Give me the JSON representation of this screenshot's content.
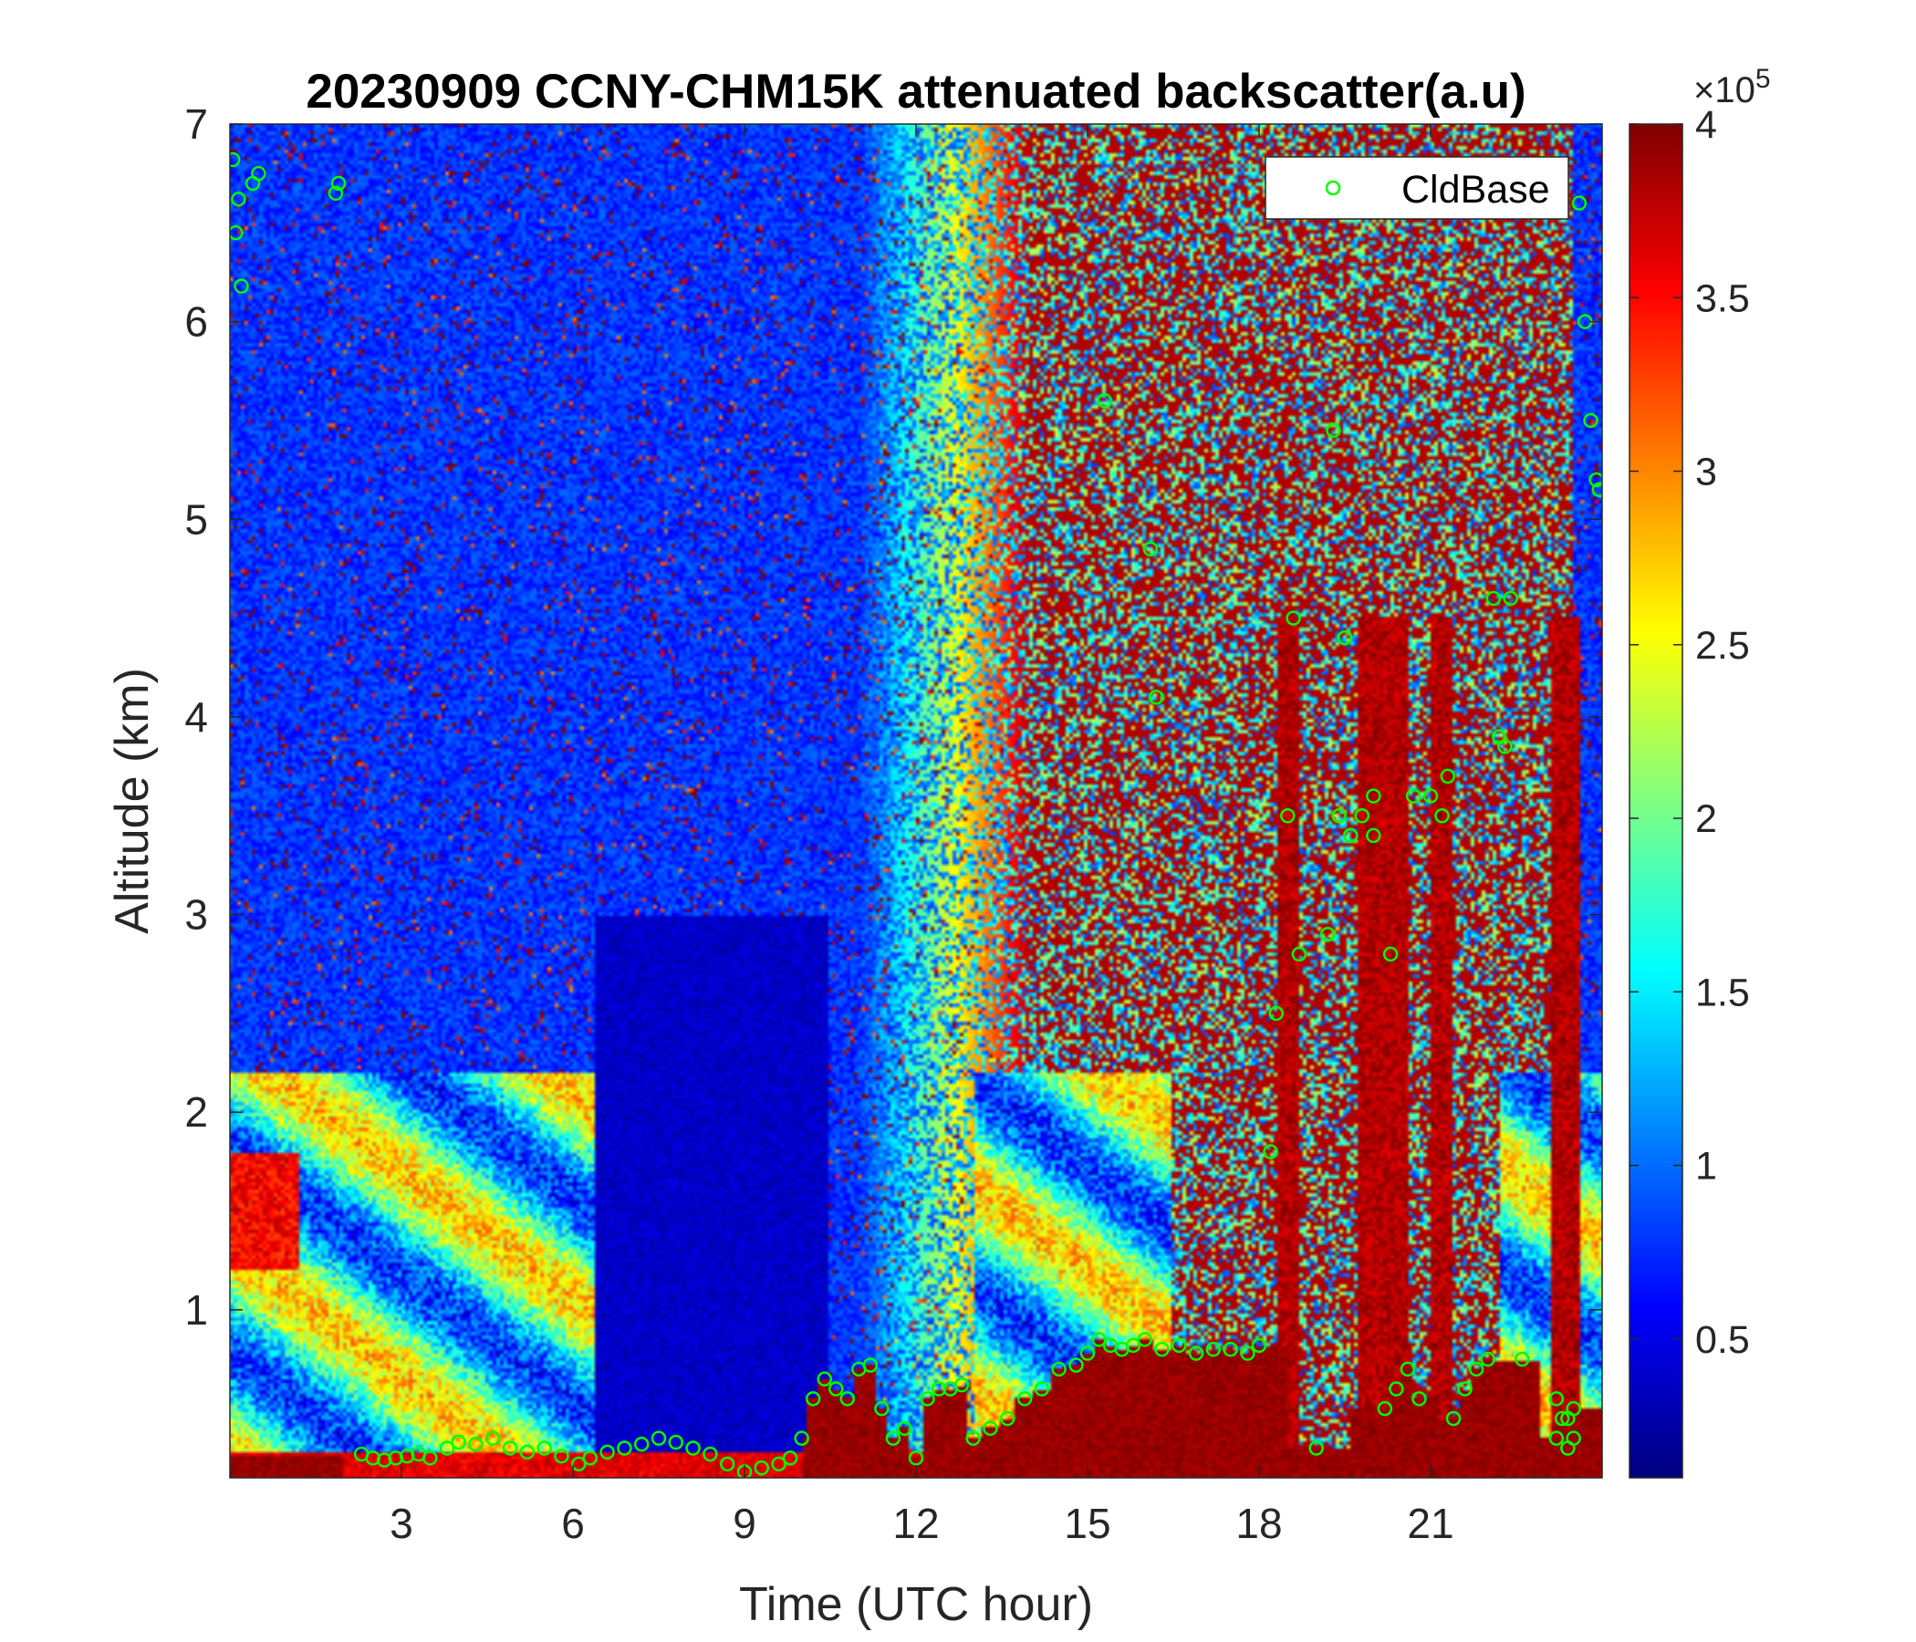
{
  "chart_data": {
    "type": "heatmap",
    "title": "20230909 CCNY-CHM15K attenuated backscatter(a.u)",
    "xlabel": "Time (UTC hour)",
    "ylabel": "Altitude (km)",
    "xlim": [
      0,
      24
    ],
    "ylim": [
      0.15,
      7
    ],
    "x_ticks": [
      3,
      6,
      9,
      12,
      15,
      18,
      21
    ],
    "x_tick_labels": [
      "3",
      "6",
      "9",
      "12",
      "15",
      "18",
      "21"
    ],
    "y_ticks": [
      1,
      2,
      3,
      4,
      5,
      6,
      7
    ],
    "y_tick_labels": [
      "1",
      "2",
      "3",
      "4",
      "5",
      "6",
      "7"
    ],
    "colorbar": {
      "colormap": "jet",
      "range": [
        0.1,
        4
      ],
      "ticks": [
        0.5,
        1,
        1.5,
        2,
        2.5,
        3,
        3.5,
        4
      ],
      "tick_labels": [
        "0.5",
        "1",
        "1.5",
        "2",
        "2.5",
        "3",
        "3.5",
        "4"
      ],
      "exponent_base": "×10",
      "exponent_power": "5"
    },
    "legend": {
      "placement": "top-right",
      "entries": [
        "CldBase"
      ]
    },
    "series": [
      {
        "name": "CldBase",
        "marker": "circle",
        "color": "#00ff00",
        "x": [
          0.05,
          0.1,
          0.15,
          0.2,
          0.4,
          0.5,
          1.85,
          1.9,
          2.3,
          2.5,
          2.7,
          2.9,
          3.1,
          3.3,
          3.5,
          3.8,
          4.0,
          4.3,
          4.6,
          4.9,
          5.2,
          5.5,
          5.8,
          6.1,
          6.3,
          6.6,
          6.9,
          7.2,
          7.5,
          7.8,
          8.1,
          8.4,
          8.7,
          9.0,
          9.3,
          9.6,
          9.8,
          10.0,
          10.2,
          10.4,
          10.6,
          10.8,
          11.0,
          11.2,
          11.4,
          11.6,
          11.8,
          12.0,
          12.2,
          12.4,
          12.6,
          12.8,
          13.0,
          13.3,
          13.6,
          13.9,
          14.2,
          14.5,
          14.8,
          15.0,
          15.2,
          15.4,
          15.6,
          15.8,
          16.0,
          16.3,
          16.6,
          16.9,
          17.2,
          17.5,
          17.8,
          18.0,
          18.2,
          18.3,
          18.5,
          18.6,
          18.7,
          19.0,
          19.2,
          19.4,
          19.5,
          19.6,
          19.8,
          20.0,
          20.2,
          20.4,
          20.6,
          20.8,
          21.0,
          21.2,
          21.4,
          21.6,
          21.8,
          22.0,
          22.2,
          22.4,
          22.6,
          23.2,
          23.4,
          23.5,
          23.6,
          23.7,
          23.8,
          23.9,
          23.95,
          23.2,
          23.3,
          23.4,
          23.5,
          15.3,
          16.1,
          16.2,
          19.3,
          19.5,
          20.0,
          20.3,
          22.1,
          22.3,
          19.6,
          20.7,
          21.3
        ],
        "y": [
          6.82,
          6.45,
          6.62,
          6.18,
          6.7,
          6.75,
          6.65,
          6.7,
          0.27,
          0.25,
          0.24,
          0.25,
          0.26,
          0.27,
          0.25,
          0.3,
          0.33,
          0.32,
          0.35,
          0.3,
          0.28,
          0.3,
          0.26,
          0.22,
          0.25,
          0.28,
          0.3,
          0.32,
          0.35,
          0.33,
          0.3,
          0.27,
          0.22,
          0.18,
          0.2,
          0.22,
          0.25,
          0.35,
          0.55,
          0.65,
          0.6,
          0.55,
          0.7,
          0.72,
          0.5,
          0.35,
          0.4,
          0.25,
          0.55,
          0.6,
          0.6,
          0.62,
          0.35,
          0.4,
          0.45,
          0.55,
          0.6,
          0.7,
          0.72,
          0.78,
          0.85,
          0.82,
          0.8,
          0.82,
          0.85,
          0.8,
          0.82,
          0.78,
          0.8,
          0.8,
          0.78,
          0.82,
          1.8,
          2.5,
          3.5,
          4.5,
          2.8,
          0.3,
          2.9,
          3.5,
          4.4,
          3.4,
          3.5,
          3.4,
          0.5,
          0.6,
          0.7,
          0.55,
          3.6,
          3.5,
          0.45,
          0.6,
          0.7,
          0.75,
          3.9,
          4.6,
          0.75,
          0.35,
          0.45,
          0.5,
          6.6,
          6.0,
          5.5,
          5.2,
          5.15,
          0.55,
          0.45,
          0.3,
          0.35,
          5.6,
          4.85,
          4.1,
          5.45,
          4.4,
          3.6,
          2.8,
          4.6,
          3.85,
          3.4,
          3.6,
          3.7
        ]
      }
    ]
  }
}
